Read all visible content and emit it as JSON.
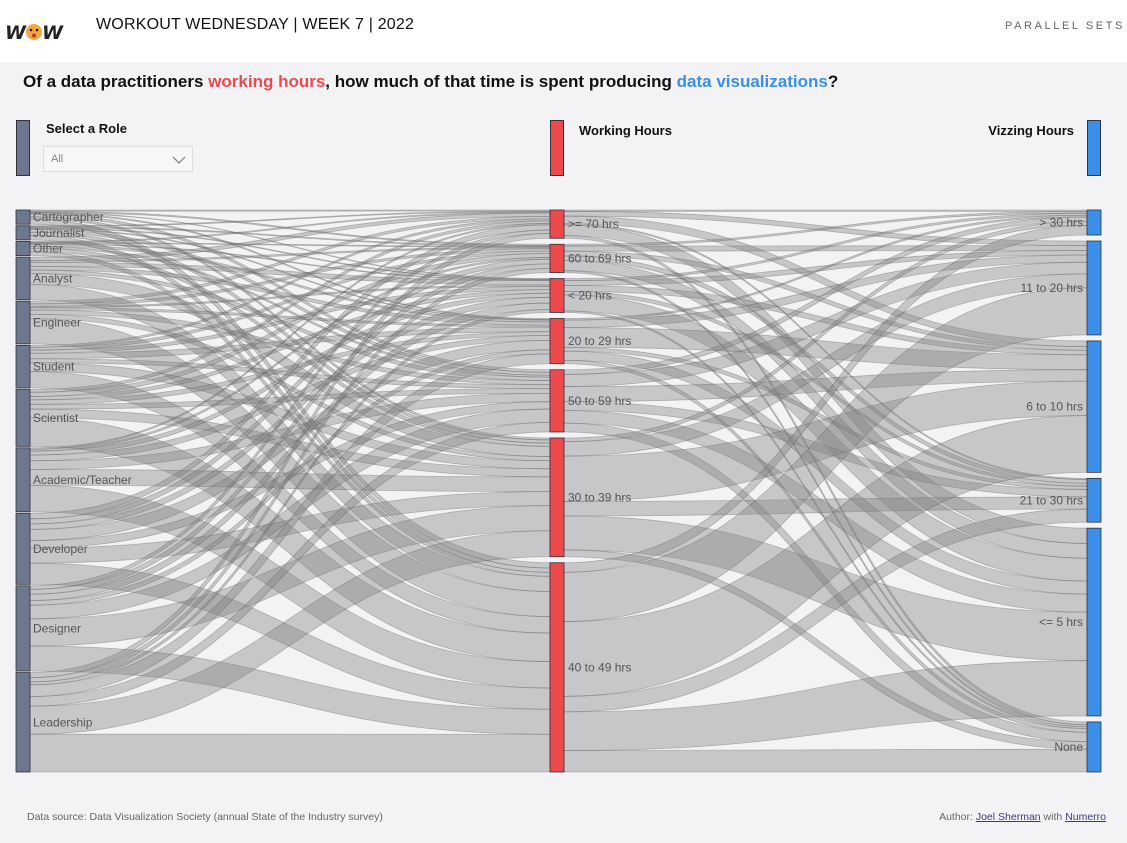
{
  "header": {
    "title": "WORKOUT WEDNESDAY | WEEK 7 | 2022",
    "right_label": "PARALLEL SETS",
    "logo_text": "WOW"
  },
  "question": {
    "part1": "Of a data practitioners ",
    "highlight1": "working hours",
    "part2": ", how much of that time is spent producing ",
    "highlight2": "data visualizations",
    "part3": "?"
  },
  "filter": {
    "label": "Select a Role",
    "value": "All"
  },
  "colors": {
    "role": "#6e7690",
    "working": "#ee4a4e",
    "vizzing": "#3b8fe8",
    "ribbon": "#808080"
  },
  "chart_data": {
    "type": "parallel_sets",
    "dimensions": [
      {
        "name": "",
        "categories": [
          "Cartographer",
          "Journalist",
          "Other",
          "Analyst",
          "Engineer",
          "Student",
          "Scientist",
          "Academic/Teacher",
          "Developer",
          "Designer",
          "Leadership"
        ],
        "weights": [
          2,
          2,
          2,
          6,
          6,
          6,
          8,
          9,
          10,
          12,
          14
        ]
      },
      {
        "name": "Working Hours",
        "categories": [
          ">= 70 hrs",
          "60 to 69 hrs",
          "< 20 hrs",
          "20 to 29 hrs",
          "50 to 59 hrs",
          "30 to 39 hrs",
          "40 to 49 hrs"
        ],
        "weights": [
          5,
          5,
          6,
          8,
          11,
          21,
          37
        ]
      },
      {
        "name": "Vizzing Hours",
        "categories": [
          "> 30 hrs",
          "11 to 20 hrs",
          "6 to 10 hrs",
          "21 to 30 hrs",
          "<= 5 hrs",
          "None"
        ],
        "weights": [
          4,
          15,
          21,
          7,
          30,
          8
        ]
      }
    ]
  },
  "footer": {
    "source": "Data source: Data Visualization Society (annual State of the Industry survey)",
    "author_prefix": "Author: ",
    "author": "Joel Sherman",
    "with": " with ",
    "partner": "Numerro"
  }
}
